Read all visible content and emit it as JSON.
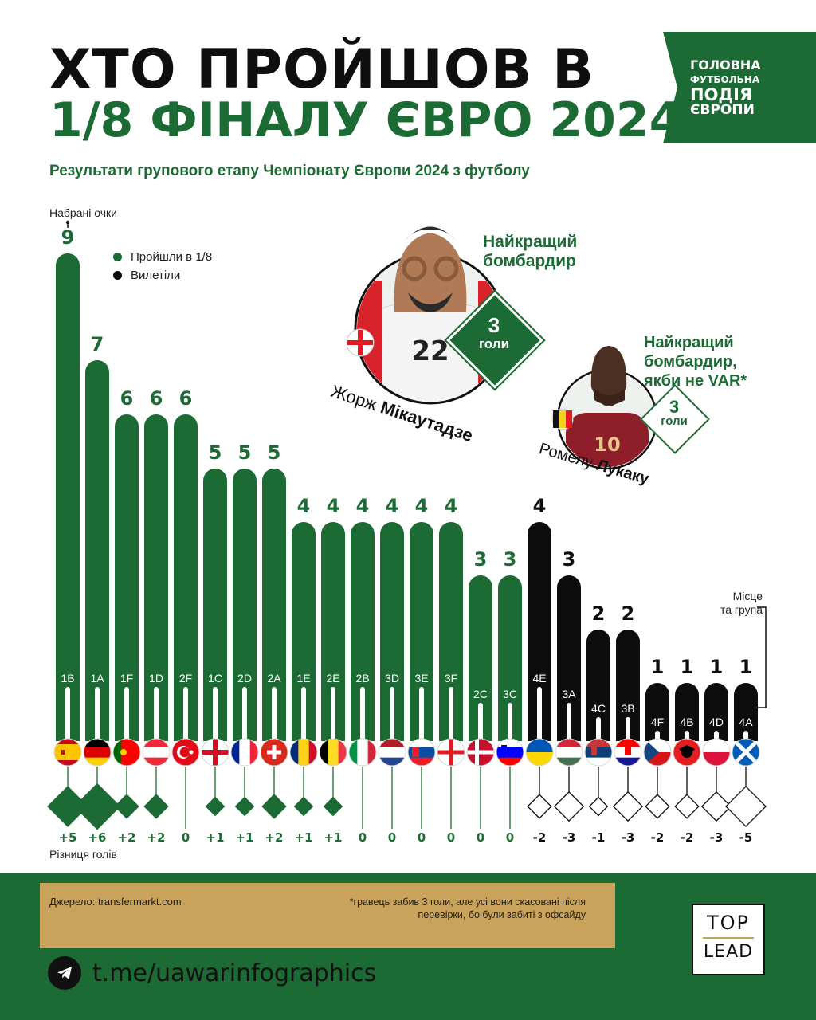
{
  "title_line1": "ХТО ПРОЙШОВ В",
  "title_line2": "1/8 ФІНАЛУ ЄВРО 2024?",
  "subtitle": "Результати групового етапу Чемпіонату Європи 2024 з футболу",
  "banner": {
    "l1": "ГОЛОВНА",
    "l2": "ФУТБОЛЬНА",
    "l3": "ПОДІЯ",
    "l4": "ЄВРОПИ"
  },
  "axis_label_points": "Набрані очки",
  "axis_label_goal_diff": "Різниця голів",
  "axis_label_place": {
    "l1": "Місце",
    "l2": "та група"
  },
  "legend": [
    {
      "label": "Пройшли в 1/8",
      "color": "#1c6b35"
    },
    {
      "label": "Вилетіли",
      "color": "#0d0d0d"
    }
  ],
  "scorer1": {
    "caption_l1": "Найкращий",
    "caption_l2": "бомбардир",
    "goals_num": "3",
    "goals_word": "голи",
    "first_name": "Жорж",
    "last_name": "Мікаутадзе",
    "shirt": "22"
  },
  "scorer2": {
    "caption_l1": "Найкращий",
    "caption_l2": "бомбардир,",
    "caption_l3": "якби не VAR*",
    "goals_num": "3",
    "goals_word": "голи",
    "first_name": "Ромелу",
    "last_name": "Лукаку",
    "shirt": "10"
  },
  "footer": {
    "source": "Джерело: transfermarkt.com",
    "footnote_l1": "*гравець забив 3 голи, але усі вони скасовані після",
    "footnote_l2": "перевірки, бо були забиті з офсайду",
    "telegram": "t.me/uawarinfographics",
    "logo_top": "TOP",
    "logo_bottom": "LEAD"
  },
  "chart_data": {
    "type": "bar",
    "title": "ХТО ПРОЙШОВ В 1/8 ФІНАЛУ ЄВРО 2024?",
    "ylabel": "Набрані очки",
    "ylim": [
      0,
      9
    ],
    "categories": [
      "1B",
      "1A",
      "1F",
      "1D",
      "2F",
      "1C",
      "2D",
      "2A",
      "1E",
      "2E",
      "2B",
      "3D",
      "3E",
      "3F",
      "2C",
      "3C",
      "4E",
      "3A",
      "4C",
      "3B",
      "4F",
      "4B",
      "4D",
      "4A"
    ],
    "points": [
      9,
      7,
      6,
      6,
      6,
      5,
      5,
      5,
      4,
      4,
      4,
      4,
      4,
      4,
      3,
      3,
      4,
      3,
      2,
      2,
      1,
      1,
      1,
      1
    ],
    "goal_diff": [
      "+5",
      "+6",
      "+2",
      "+2",
      "0",
      "+1",
      "+1",
      "+2",
      "+1",
      "+1",
      "0",
      "0",
      "0",
      "0",
      "0",
      "0",
      "-2",
      "-3",
      "-1",
      "-3",
      "-2",
      "-2",
      "-3",
      "-5"
    ],
    "goal_diff_values": [
      5,
      6,
      2,
      2,
      0,
      1,
      1,
      2,
      1,
      1,
      0,
      0,
      0,
      0,
      0,
      0,
      -2,
      -3,
      -1,
      -3,
      -2,
      -2,
      -3,
      -5
    ],
    "status": [
      "q",
      "q",
      "q",
      "q",
      "q",
      "q",
      "q",
      "q",
      "q",
      "q",
      "q",
      "q",
      "q",
      "q",
      "q",
      "q",
      "out",
      "out",
      "out",
      "out",
      "out",
      "out",
      "out",
      "out"
    ],
    "flags": [
      "spain",
      "germany",
      "portugal",
      "austria",
      "turkey",
      "england",
      "france",
      "switzerland",
      "romania",
      "belgium",
      "italy",
      "netherlands",
      "slovakia",
      "georgia",
      "denmark",
      "slovenia",
      "ukraine",
      "hungary",
      "serbia",
      "croatia",
      "czechia",
      "albania",
      "poland",
      "scotland"
    ],
    "colors": {
      "qualified": "#1c6b35",
      "eliminated": "#0d0d0d"
    }
  }
}
